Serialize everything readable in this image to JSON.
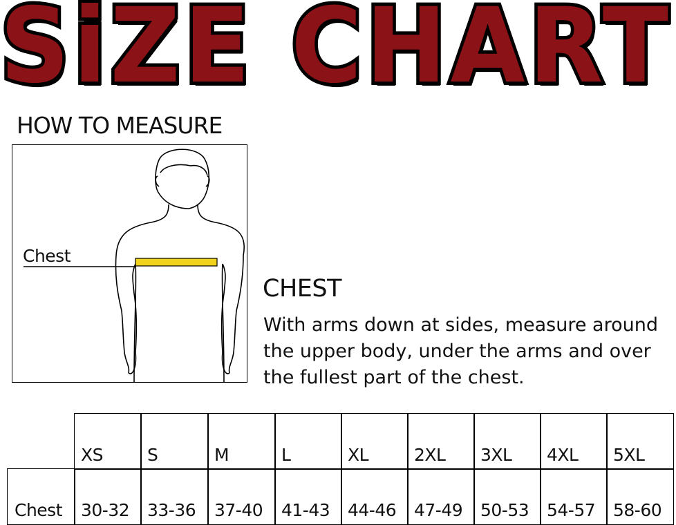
{
  "title": "SiZE CHART",
  "how_to_measure": "HOW TO MEASURE",
  "figure": {
    "label": "Chest",
    "tape_color": "#f2d21b"
  },
  "chest": {
    "heading": "CHEST",
    "description": "With arms down at sides, measure around the upper body, under the arms and over the fullest part of the chest."
  },
  "table": {
    "sizes": [
      "XS",
      "S",
      "M",
      "L",
      "XL",
      "2XL",
      "3XL",
      "4XL",
      "5XL"
    ],
    "row_label": "Chest",
    "values": [
      "30-32",
      "33-36",
      "37-40",
      "41-43",
      "44-46",
      "47-49",
      "50-53",
      "54-57",
      "58-60"
    ]
  },
  "colors": {
    "title_fill": "#8b1216",
    "title_outline": "#000000"
  }
}
